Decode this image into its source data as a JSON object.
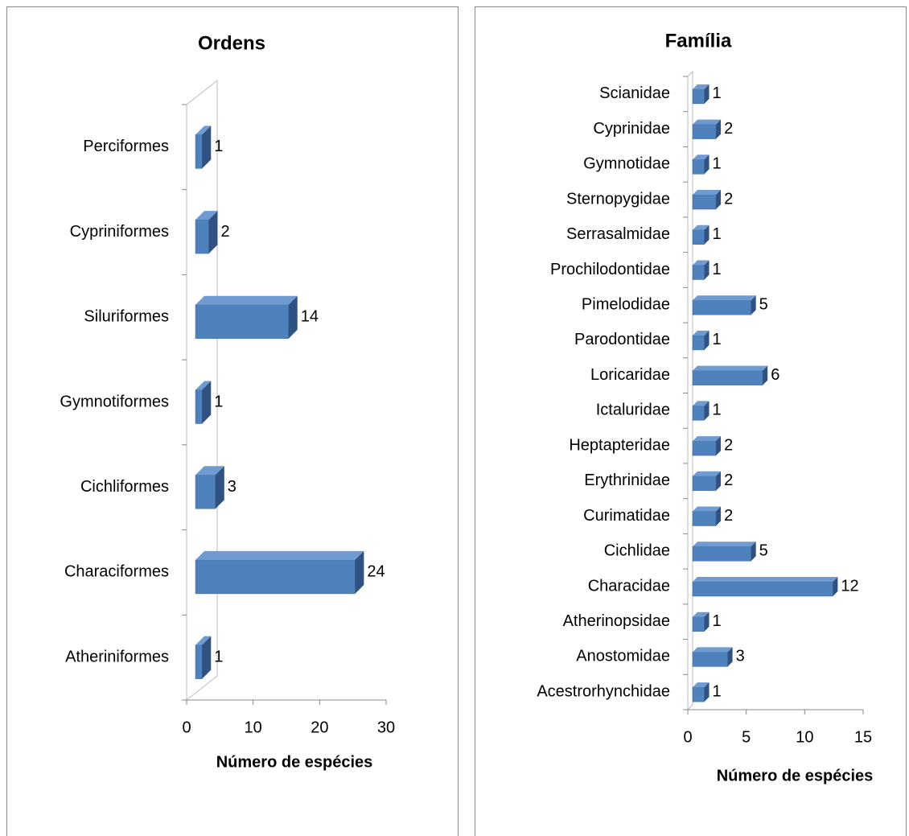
{
  "chart_data": [
    {
      "type": "bar3d",
      "title": "Ordens",
      "xlabel": "Número de espécies",
      "categories": [
        "Perciformes",
        "Cypriniformes",
        "Siluriformes",
        "Gymnotiformes",
        "Cichliformes",
        "Characiformes",
        "Atheriniformes"
      ],
      "values": [
        1,
        2,
        14,
        1,
        3,
        24,
        1
      ],
      "color": "#4f81bd",
      "xlim": [
        0,
        30
      ],
      "xticks": [
        0,
        10,
        20,
        30
      ]
    },
    {
      "type": "bar3d",
      "title": "Família",
      "xlabel": "Número de espécies",
      "categories": [
        "Scianidae",
        "Cyprinidae",
        "Gymnotidae",
        "Sternopygidae",
        "Serrasalmidae",
        "Prochilodontidae",
        "Pimelodidae",
        "Parodontidae",
        "Loricaridae",
        "Ictaluridae",
        "Heptapteridae",
        "Erythrinidae",
        "Curimatidae",
        "Cichlidae",
        "Characidae",
        "Atherinopsidae",
        "Anostomidae",
        "Acestrorhynchidae"
      ],
      "values": [
        1,
        2,
        1,
        2,
        1,
        1,
        5,
        1,
        6,
        1,
        2,
        2,
        2,
        5,
        12,
        1,
        3,
        1
      ],
      "color": "#4f81bd",
      "xlim": [
        0,
        15
      ],
      "xticks": [
        0,
        5,
        10,
        15
      ]
    }
  ]
}
